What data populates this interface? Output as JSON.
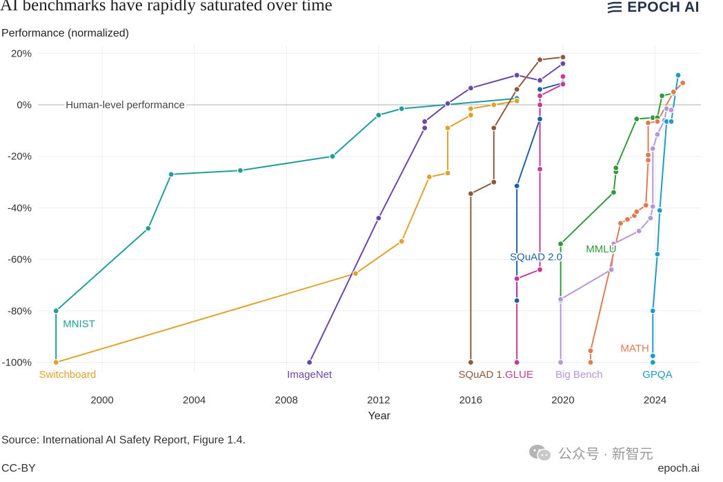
{
  "header": {
    "title": "AI benchmarks have rapidly saturated over time",
    "brand": "EPOCH AI"
  },
  "footer": {
    "source": "Source: International AI Safety Report, Figure 1.4.",
    "license": "CC-BY",
    "site": "epoch.ai",
    "watermark": "公众号 · 新智元"
  },
  "chart_data": {
    "type": "line",
    "ylabel": "Performance (normalized)",
    "xlabel": "Year",
    "xlim": [
      1997.1,
      2025.5
    ],
    "ylim": [
      -103,
      22
    ],
    "xticks": [
      2000,
      2004,
      2008,
      2012,
      2016,
      2020,
      2024
    ],
    "yticks": [
      20,
      0,
      -20,
      -40,
      -60,
      -80,
      -100
    ],
    "ytick_labels": [
      "20%",
      "0%",
      "-20%",
      "-40%",
      "-60%",
      "-80%",
      "-100%"
    ],
    "grid": true,
    "reference_line": {
      "y": 0,
      "label": "Human-level performance"
    },
    "series": [
      {
        "name": "MNIST",
        "color": "#1f9e99",
        "points": [
          [
            1998,
            -100
          ],
          [
            1998,
            -80
          ],
          [
            2002,
            -48
          ],
          [
            2003,
            -27
          ],
          [
            2006,
            -25.5
          ],
          [
            2010,
            -20
          ],
          [
            2012,
            -4
          ],
          [
            2013,
            -1.5
          ],
          [
            2018,
            2.5
          ]
        ]
      },
      {
        "name": "Switchboard",
        "color": "#e0a22a",
        "points": [
          [
            1998,
            -100
          ],
          [
            2011,
            -65.5
          ],
          [
            2013,
            -53
          ],
          [
            2014.2,
            -28
          ],
          [
            2015,
            -26.5
          ],
          [
            2015,
            -9
          ],
          [
            2016,
            -4
          ],
          [
            2016,
            -1.5
          ],
          [
            2017,
            0
          ],
          [
            2018,
            1.5
          ]
        ]
      },
      {
        "name": "ImageNet",
        "color": "#6a46a8",
        "points": [
          [
            2009,
            -100
          ],
          [
            2012,
            -44
          ],
          [
            2014,
            -9
          ],
          [
            2014,
            -6.5
          ],
          [
            2015,
            0.5
          ],
          [
            2016,
            6.5
          ],
          [
            2018,
            11.5
          ],
          [
            2019,
            9.5
          ],
          [
            2020,
            16
          ]
        ]
      },
      {
        "name": "SQuAD 1.1",
        "color": "#8b5a3c",
        "points": [
          [
            2016,
            -100
          ],
          [
            2016,
            -34.5
          ],
          [
            2017,
            -30
          ],
          [
            2017,
            -9
          ],
          [
            2018,
            6
          ],
          [
            2019,
            17.5
          ],
          [
            2020,
            18.5
          ]
        ]
      },
      {
        "name": "SQuAD 2.0",
        "color": "#1d5fa8",
        "points": [
          [
            2018,
            -76
          ],
          [
            2018,
            -31.5
          ],
          [
            2019,
            -5.5
          ],
          [
            2019,
            6
          ],
          [
            2020,
            8.5
          ]
        ]
      },
      {
        "name": "GLUE",
        "color": "#c43a96",
        "points": [
          [
            2018,
            -100
          ],
          [
            2018,
            -67.5
          ],
          [
            2019,
            -64
          ],
          [
            2019,
            -25
          ],
          [
            2019,
            0
          ],
          [
            2019,
            3.5
          ],
          [
            2020,
            8
          ],
          [
            2020,
            11
          ]
        ]
      },
      {
        "name": "MMLU",
        "color": "#2e9a3a",
        "points": [
          [
            2019.9,
            -76
          ],
          [
            2019.9,
            -54
          ],
          [
            2022.2,
            -34
          ],
          [
            2022.3,
            -26
          ],
          [
            2022.3,
            -24.5
          ],
          [
            2023.2,
            -5.5
          ],
          [
            2023.9,
            -5
          ],
          [
            2024.1,
            -5
          ],
          [
            2024.3,
            3.5
          ],
          [
            2024.8,
            4.5
          ]
        ]
      },
      {
        "name": "Big Bench",
        "color": "#b497d8",
        "points": [
          [
            2019.9,
            -100
          ],
          [
            2019.9,
            -75.5
          ],
          [
            2022.1,
            -64
          ],
          [
            2022.2,
            -56
          ],
          [
            2022.2,
            -54
          ],
          [
            2023.3,
            -49
          ],
          [
            2023.8,
            -44
          ],
          [
            2023.9,
            -39.5
          ],
          [
            2023.9,
            -17
          ],
          [
            2024.1,
            -11.5
          ],
          [
            2024.4,
            -6
          ],
          [
            2024.5,
            -1.5
          ],
          [
            2024.7,
            -2
          ]
        ]
      },
      {
        "name": "MATH",
        "color": "#e07a52",
        "points": [
          [
            2021.2,
            -100
          ],
          [
            2021.2,
            -95.5
          ],
          [
            2022.5,
            -46
          ],
          [
            2022.8,
            -44.5
          ],
          [
            2023.1,
            -43
          ],
          [
            2023.2,
            -41.5
          ],
          [
            2023.6,
            -39
          ],
          [
            2023.7,
            -21.5
          ],
          [
            2023.7,
            -19.5
          ],
          [
            2023.7,
            -7
          ],
          [
            2024.1,
            -6.5
          ],
          [
            2024.8,
            5
          ],
          [
            2025.2,
            8.5
          ]
        ]
      },
      {
        "name": "GPQA",
        "color": "#1f9bc9",
        "points": [
          [
            2023.9,
            -100
          ],
          [
            2023.9,
            -97.5
          ],
          [
            2023.9,
            -80
          ],
          [
            2024.1,
            -58
          ],
          [
            2024.2,
            -41
          ],
          [
            2024.5,
            -6.5
          ],
          [
            2024.7,
            -6.5
          ],
          [
            2025,
            11.5
          ]
        ]
      }
    ],
    "labels": {
      "MNIST": {
        "x": 1998.3,
        "y": -85
      },
      "Switchboard": {
        "x": 1998.5,
        "y": -104.7
      },
      "ImageNet": {
        "x": 2009,
        "y": -104.7
      },
      "SQuAD 1.1": {
        "x": 2016.6,
        "y": -104.7
      },
      "SQuAD 2.0": {
        "x": 2017.7,
        "y": -59
      },
      "GLUE": {
        "x": 2018.1,
        "y": -104.7
      },
      "MMLU": {
        "x": 2021,
        "y": -56
      },
      "Big Bench": {
        "x": 2020.7,
        "y": -104.7
      },
      "MATH": {
        "x": 2022.5,
        "y": -94.5
      },
      "GPQA": {
        "x": 2024.1,
        "y": -104.7
      }
    }
  }
}
